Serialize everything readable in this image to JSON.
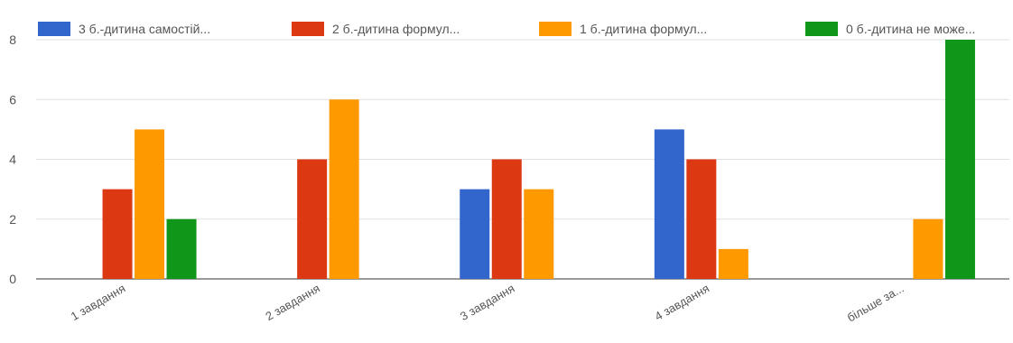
{
  "chart_data": {
    "type": "bar",
    "categories": [
      "1 завдання",
      "2 завдання",
      "3 завдання",
      "4 завдання",
      "більше за..."
    ],
    "series": [
      {
        "name": "3 б.-дитина самостій...",
        "color": "#3366cc",
        "values": [
          0,
          0,
          3,
          5,
          0
        ]
      },
      {
        "name": "2 б.-дитина формул...",
        "color": "#dc3912",
        "values": [
          3,
          4,
          4,
          4,
          0
        ]
      },
      {
        "name": "1 б.-дитина формул...",
        "color": "#ff9900",
        "values": [
          5,
          6,
          3,
          1,
          2
        ]
      },
      {
        "name": "0 б.-дитина не може...",
        "color": "#109618",
        "values": [
          2,
          0,
          0,
          0,
          8
        ]
      }
    ],
    "yticks": [
      0,
      2,
      4,
      6,
      8
    ],
    "ylim": [
      0,
      8
    ],
    "grid": true,
    "legend_position": "top"
  }
}
